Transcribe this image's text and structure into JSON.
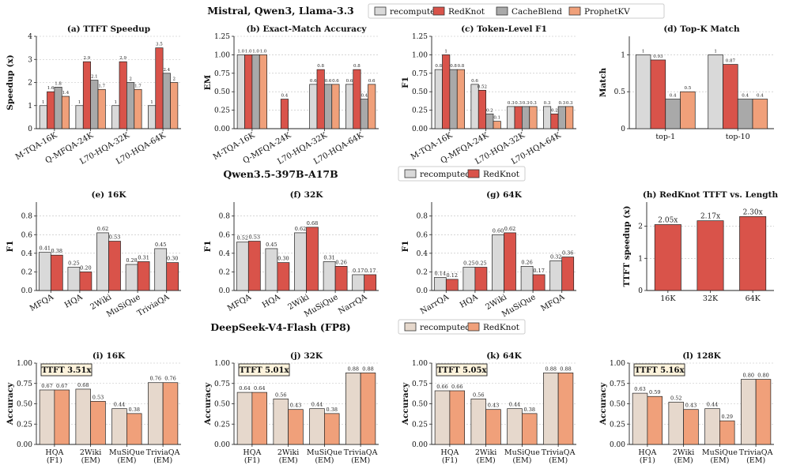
{
  "figure": {
    "rows": [
      {
        "title": "Mistral, Qwen3, Llama-3.3",
        "legend": [
          "recompute",
          "RedKnot",
          "CacheBlend",
          "ProphetKV"
        ],
        "colors": [
          "#d9d9d9",
          "#d9534a",
          "#a9a9a9",
          "#f0a07a"
        ]
      },
      {
        "title": "Qwen3.5-397B-A17B",
        "legend": [
          "recomputed",
          "RedKnot"
        ],
        "colors": [
          "#d9d9d9",
          "#d9534a"
        ]
      },
      {
        "title": "DeepSeek-V4-Flash (FP8)",
        "legend": [
          "recomputed",
          "RedKnot"
        ],
        "colors": [
          "#e6d8cc",
          "#f0a07a"
        ]
      }
    ]
  },
  "chart_data": [
    {
      "id": "a",
      "type": "bar",
      "title": "(a) TTFT Speedup",
      "ylabel": "Speedup (x)",
      "ylim": [
        0,
        4
      ],
      "yticks": [
        0,
        1,
        2,
        3,
        4
      ],
      "ytick_labels": [
        "0",
        "1",
        "2",
        "3",
        "4"
      ],
      "grid": true,
      "rotate_x": true,
      "categories": [
        "M-TQA-16K",
        "Q-MFQA-24K",
        "L70-HQA-32K",
        "L70-HQA-64K"
      ],
      "series": [
        {
          "name": "recompute",
          "values": [
            1,
            1,
            1,
            1
          ],
          "labels": [
            "1",
            "1",
            "1",
            "1"
          ]
        },
        {
          "name": "RedKnot",
          "values": [
            1.6,
            2.9,
            2.9,
            3.5
          ],
          "labels": [
            "1.6",
            "2.9",
            "2.9",
            "3.5"
          ]
        },
        {
          "name": "CacheBlend",
          "values": [
            1.8,
            2.1,
            2.0,
            2.4
          ],
          "labels": [
            "1.8",
            "2.1",
            "2",
            "2.4"
          ]
        },
        {
          "name": "ProphetKV",
          "values": [
            1.4,
            1.7,
            1.7,
            2.0
          ],
          "labels": [
            "1.4",
            "1.7",
            "1.7",
            "2"
          ]
        }
      ]
    },
    {
      "id": "b",
      "type": "bar",
      "title": "(b) Exact-Match Accuracy",
      "ylabel": "EM",
      "ylim": [
        0,
        1.25
      ],
      "yticks": [
        0,
        0.25,
        0.5,
        0.75,
        1.0,
        1.25
      ],
      "ytick_labels": [
        "0.00",
        "0.25",
        "0.50",
        "0.75",
        "1.00",
        "1.25"
      ],
      "grid": true,
      "rotate_x": true,
      "categories": [
        "M-TQA-16K",
        "Q-MFQA-24K",
        "L70-HQA-32K",
        "L70-HQA-64K"
      ],
      "series": [
        {
          "name": "recompute",
          "values": [
            1.0,
            0,
            0.6,
            0.6
          ],
          "labels": [
            "1.0",
            "",
            "0.6",
            "0.6"
          ]
        },
        {
          "name": "RedKnot",
          "values": [
            1.0,
            0.4,
            0.8,
            0.8
          ],
          "labels": [
            "1.0",
            "0.4",
            "0.8",
            "0.8"
          ]
        },
        {
          "name": "CacheBlend",
          "values": [
            1.0,
            0,
            0.6,
            0.4
          ],
          "labels": [
            "1.0",
            "",
            "0.6",
            "0.4"
          ]
        },
        {
          "name": "ProphetKV",
          "values": [
            1.0,
            0,
            0.6,
            0.6
          ],
          "labels": [
            "1.0",
            "",
            "0.6",
            "0.6"
          ]
        }
      ]
    },
    {
      "id": "c",
      "type": "bar",
      "title": "(c) Token-Level F1",
      "ylabel": "F1",
      "ylim": [
        0,
        1.25
      ],
      "yticks": [
        0,
        0.25,
        0.5,
        0.75,
        1.0,
        1.25
      ],
      "ytick_labels": [
        "0.00",
        "0.25",
        "0.50",
        "0.75",
        "1.00",
        "1.25"
      ],
      "grid": true,
      "rotate_x": true,
      "categories": [
        "M-TQA-16K",
        "Q-MFQA-24K",
        "L70-HQA-32K",
        "L70-HQA-64K"
      ],
      "series": [
        {
          "name": "recompute",
          "values": [
            0.8,
            0.6,
            0.3,
            0.3
          ],
          "labels": [
            "0.8",
            "0.6",
            "0.3",
            "0.3"
          ]
        },
        {
          "name": "RedKnot",
          "values": [
            1.0,
            0.52,
            0.3,
            0.2
          ],
          "labels": [
            "1",
            "0.52",
            "0.3",
            "0.2"
          ]
        },
        {
          "name": "CacheBlend",
          "values": [
            0.8,
            0.2,
            0.3,
            0.3
          ],
          "labels": [
            "0.8",
            "0.2",
            "0.3",
            "0.3"
          ]
        },
        {
          "name": "ProphetKV",
          "values": [
            0.8,
            0.1,
            0.3,
            0.3
          ],
          "labels": [
            "0.8",
            "0.1",
            "0.3",
            "0.3"
          ]
        }
      ]
    },
    {
      "id": "d",
      "type": "bar",
      "title": "(d) Top-K Match",
      "ylabel": "Match",
      "ylim": [
        0,
        1.25
      ],
      "yticks": [
        0,
        0.5,
        1.0
      ],
      "ytick_labels": [
        "0",
        "0.5",
        "1"
      ],
      "grid": true,
      "rotate_x": false,
      "categories": [
        "top-1",
        "top-10"
      ],
      "series": [
        {
          "name": "recompute",
          "values": [
            1.0,
            1.0
          ],
          "labels": [
            "1",
            "1"
          ]
        },
        {
          "name": "RedKnot",
          "values": [
            0.93,
            0.87
          ],
          "labels": [
            "0.93",
            "0.87"
          ]
        },
        {
          "name": "CacheBlend",
          "values": [
            0.4,
            0.4
          ],
          "labels": [
            "0.4",
            "0.4"
          ]
        },
        {
          "name": "ProphetKV",
          "values": [
            0.5,
            0.4
          ],
          "labels": [
            "0.5",
            "0.4"
          ]
        }
      ]
    },
    {
      "id": "e",
      "type": "bar",
      "title": "(e) 16K",
      "ylabel": "F1",
      "ylim": [
        0,
        0.95
      ],
      "yticks": [
        0,
        0.2,
        0.4,
        0.6,
        0.8
      ],
      "ytick_labels": [
        "0.0",
        "0.2",
        "0.4",
        "0.6",
        "0.8"
      ],
      "grid": true,
      "rotate_x": true,
      "categories": [
        "MFQA",
        "HQA",
        "2Wiki",
        "MuSiQue",
        "TriviaQA"
      ],
      "series": [
        {
          "name": "recomputed",
          "values": [
            0.41,
            0.25,
            0.62,
            0.28,
            0.45
          ],
          "labels": [
            "0.41",
            "0.25",
            "0.62",
            "0.28",
            "0.45"
          ]
        },
        {
          "name": "RedKnot",
          "values": [
            0.38,
            0.2,
            0.53,
            0.31,
            0.3
          ],
          "labels": [
            "0.38",
            "0.20",
            "0.53",
            "0.31",
            "0.30"
          ]
        }
      ]
    },
    {
      "id": "f",
      "type": "bar",
      "title": "(f) 32K",
      "ylabel": "F1",
      "ylim": [
        0,
        0.95
      ],
      "yticks": [
        0,
        0.2,
        0.4,
        0.6,
        0.8
      ],
      "ytick_labels": [
        "0.0",
        "0.2",
        "0.4",
        "0.6",
        "0.8"
      ],
      "grid": true,
      "rotate_x": true,
      "categories": [
        "MFQA",
        "HQA",
        "2Wiki",
        "MuSiQue",
        "NarrQA"
      ],
      "series": [
        {
          "name": "recomputed",
          "values": [
            0.52,
            0.45,
            0.62,
            0.31,
            0.17
          ],
          "labels": [
            "0.52",
            "0.45",
            "0.62",
            "0.31",
            "0.17"
          ]
        },
        {
          "name": "RedKnot",
          "values": [
            0.53,
            0.3,
            0.68,
            0.26,
            0.17
          ],
          "labels": [
            "0.53",
            "0.30",
            "0.68",
            "0.26",
            "0.17"
          ]
        }
      ]
    },
    {
      "id": "g",
      "type": "bar",
      "title": "(g) 64K",
      "ylabel": "F1",
      "ylim": [
        0,
        0.95
      ],
      "yticks": [
        0,
        0.2,
        0.4,
        0.6,
        0.8
      ],
      "ytick_labels": [
        "0.0",
        "0.2",
        "0.4",
        "0.6",
        "0.8"
      ],
      "grid": true,
      "rotate_x": true,
      "categories": [
        "NarrQA",
        "HQA",
        "2Wiki",
        "MuSiQue",
        "MFQA"
      ],
      "series": [
        {
          "name": "recomputed",
          "values": [
            0.14,
            0.25,
            0.6,
            0.26,
            0.32
          ],
          "labels": [
            "0.14",
            "0.25",
            "0.60",
            "0.26",
            "0.32"
          ]
        },
        {
          "name": "RedKnot",
          "values": [
            0.12,
            0.25,
            0.62,
            0.17,
            0.36
          ],
          "labels": [
            "0.12",
            "0.25",
            "0.62",
            "0.17",
            "0.36"
          ]
        }
      ]
    },
    {
      "id": "h",
      "type": "bar",
      "title": "(h) RedKnot TTFT vs. Length",
      "ylabel": "TTFT speedup (x)",
      "ylim": [
        0,
        2.75
      ],
      "yticks": [
        0,
        1,
        2
      ],
      "ytick_labels": [
        "0",
        "1",
        "2"
      ],
      "grid": true,
      "rotate_x": false,
      "single": true,
      "categories": [
        "16K",
        "32K",
        "64K"
      ],
      "series": [
        {
          "name": "RedKnot",
          "values": [
            2.05,
            2.17,
            2.3
          ],
          "labels": [
            "2.05x",
            "2.17x",
            "2.30x"
          ]
        }
      ]
    },
    {
      "id": "i",
      "type": "bar",
      "title": "(i) 16K",
      "ylabel": "Accuracy",
      "ylim": [
        0,
        1.0
      ],
      "yticks": [
        0,
        0.25,
        0.5,
        0.75,
        1.0
      ],
      "ytick_labels": [
        "0.00",
        "0.25",
        "0.50",
        "0.75",
        "1.00"
      ],
      "grid": true,
      "rotate_x": false,
      "badge": "TTFT 3.51x",
      "categories": [
        "HQA\n(F1)",
        "2Wiki\n(EM)",
        "MuSiQue\n(EM)",
        "TriviaQA\n(EM)"
      ],
      "series": [
        {
          "name": "recomputed",
          "values": [
            0.67,
            0.68,
            0.44,
            0.76
          ],
          "labels": [
            "0.67",
            "0.68",
            "0.44",
            "0.76"
          ]
        },
        {
          "name": "RedKnot",
          "values": [
            0.67,
            0.53,
            0.38,
            0.76
          ],
          "labels": [
            "0.67",
            "0.53",
            "0.38",
            "0.76"
          ]
        }
      ]
    },
    {
      "id": "j",
      "type": "bar",
      "title": "(j) 32K",
      "ylabel": "Accuracy",
      "ylim": [
        0,
        1.0
      ],
      "yticks": [
        0,
        0.25,
        0.5,
        0.75,
        1.0
      ],
      "ytick_labels": [
        "0.00",
        "0.25",
        "0.50",
        "0.75",
        "1.00"
      ],
      "grid": true,
      "rotate_x": false,
      "badge": "TTFT 5.01x",
      "categories": [
        "HQA\n(F1)",
        "2Wiki\n(EM)",
        "MuSiQue\n(EM)",
        "TriviaQA\n(EM)"
      ],
      "series": [
        {
          "name": "recomputed",
          "values": [
            0.64,
            0.56,
            0.44,
            0.88
          ],
          "labels": [
            "0.64",
            "0.56",
            "0.44",
            "0.88"
          ]
        },
        {
          "name": "RedKnot",
          "values": [
            0.64,
            0.43,
            0.38,
            0.88
          ],
          "labels": [
            "0.64",
            "0.43",
            "0.38",
            "0.88"
          ]
        }
      ]
    },
    {
      "id": "k",
      "type": "bar",
      "title": "(k) 64K",
      "ylabel": "Accuracy",
      "ylim": [
        0,
        1.0
      ],
      "yticks": [
        0,
        0.25,
        0.5,
        0.75,
        1.0
      ],
      "ytick_labels": [
        "0.00",
        "0.25",
        "0.50",
        "0.75",
        "1.00"
      ],
      "grid": true,
      "rotate_x": false,
      "badge": "TTFT 5.05x",
      "categories": [
        "HQA\n(F1)",
        "2Wiki\n(EM)",
        "MuSiQue\n(EM)",
        "TriviaQA\n(EM)"
      ],
      "series": [
        {
          "name": "recomputed",
          "values": [
            0.66,
            0.56,
            0.44,
            0.88
          ],
          "labels": [
            "0.66",
            "0.56",
            "0.44",
            "0.88"
          ]
        },
        {
          "name": "RedKnot",
          "values": [
            0.66,
            0.43,
            0.38,
            0.88
          ],
          "labels": [
            "0.66",
            "0.43",
            "0.38",
            "0.88"
          ]
        }
      ]
    },
    {
      "id": "l",
      "type": "bar",
      "title": "(l) 128K",
      "ylabel": "Accuracy",
      "ylim": [
        0,
        1.0
      ],
      "yticks": [
        0,
        0.25,
        0.5,
        0.75,
        1.0
      ],
      "ytick_labels": [
        "0.00",
        "0.25",
        "0.50",
        "0.75",
        "1.00"
      ],
      "grid": true,
      "rotate_x": false,
      "badge": "TTFT 5.16x",
      "categories": [
        "HQA\n(F1)",
        "2Wiki\n(EM)",
        "MuSiQue\n(EM)",
        "TriviaQA\n(EM)"
      ],
      "series": [
        {
          "name": "recomputed",
          "values": [
            0.63,
            0.52,
            0.44,
            0.8
          ],
          "labels": [
            "0.63",
            "0.52",
            "0.44",
            "0.80"
          ]
        },
        {
          "name": "RedKnot",
          "values": [
            0.59,
            0.43,
            0.29,
            0.8
          ],
          "labels": [
            "0.59",
            "0.43",
            "0.29",
            "0.80"
          ]
        }
      ]
    }
  ]
}
